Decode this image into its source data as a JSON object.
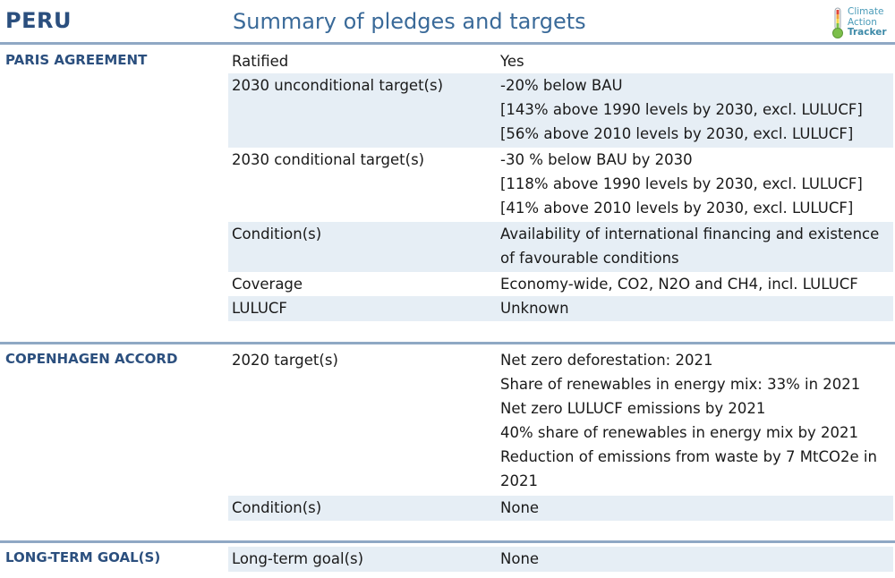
{
  "header": {
    "country": "PERU",
    "title": "Summary of pledges and targets",
    "logo": [
      "Climate",
      "Action",
      "Tracker"
    ]
  },
  "sections": [
    {
      "label": "PARIS AGREEMENT",
      "rows": [
        {
          "key": "Ratified",
          "values": [
            "Yes"
          ]
        },
        {
          "key": "2030 unconditional target(s)",
          "values": [
            "-20% below BAU",
            "[143% above 1990 levels by 2030, excl. LULUCF]",
            "[56% above 2010 levels by 2030, excl. LULUCF]"
          ]
        },
        {
          "key": "2030 conditional target(s)",
          "values": [
            "-30 % below BAU by 2030",
            "[118% above 1990 levels by 2030, excl. LULUCF]",
            "[41% above 2010 levels by 2030, excl. LULUCF]"
          ]
        },
        {
          "key": "Condition(s)",
          "values": [
            "Availability of international financing and existence",
            "of favourable conditions"
          ]
        },
        {
          "key": "Coverage",
          "values": [
            "Economy-wide, CO2, N2O and CH4, incl. LULUCF"
          ]
        },
        {
          "key": "LULUCF",
          "values": [
            "Unknown"
          ]
        }
      ]
    },
    {
      "label": "COPENHAGEN ACCORD",
      "rows": [
        {
          "key": "2020 target(s)",
          "values": [
            "Net zero deforestation: 2021",
            "Share of renewables in energy mix: 33% in 2021",
            "Net zero LULUCF emissions by 2021",
            "40% share of renewables in energy mix by 2021",
            "Reduction of emissions from waste by 7 MtCO2e in",
            "2021"
          ]
        },
        {
          "key": "Condition(s)",
          "values": [
            "None"
          ]
        }
      ]
    },
    {
      "label": "LONG-TERM GOAL(S)",
      "rows": [
        {
          "key": "Long-term goal(s)",
          "values": [
            "None"
          ]
        }
      ]
    }
  ]
}
